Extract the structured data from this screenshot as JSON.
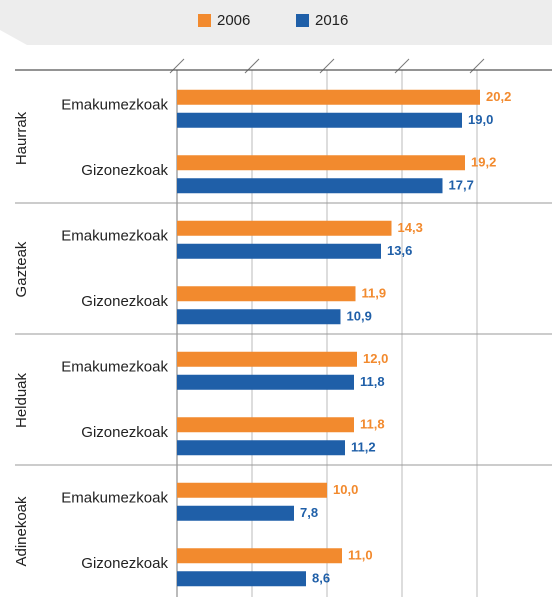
{
  "chart_data": {
    "type": "bar",
    "orientation": "horizontal",
    "groups": [
      "Haurrak",
      "Gazteak",
      "Helduak",
      "Adinekoak"
    ],
    "categories": [
      "Emakumezkoak",
      "Gizonezkoak",
      "Emakumezkoak",
      "Gizonezkoak",
      "Emakumezkoak",
      "Gizonezkoak",
      "Emakumezkoak",
      "Gizonezkoak"
    ],
    "series": [
      {
        "name": "2006",
        "color": "#f28a2e",
        "values": [
          20.2,
          19.2,
          14.3,
          11.9,
          12.0,
          11.8,
          10.0,
          11.0
        ],
        "value_labels": [
          "20,2",
          "19,2",
          "14,3",
          "11,9",
          "12,0",
          "11,8",
          "10,0",
          "11,0"
        ]
      },
      {
        "name": "2016",
        "color": "#1f5fa8",
        "values": [
          19.0,
          17.7,
          13.6,
          10.9,
          11.8,
          11.2,
          7.8,
          8.6
        ],
        "value_labels": [
          "19,0",
          "17,7",
          "13,6",
          "10,9",
          "11,8",
          "11,2",
          "7,8",
          "8,6"
        ]
      }
    ],
    "xlim": [
      0,
      25
    ],
    "xticks": [
      0,
      5,
      10,
      15,
      20
    ],
    "grid": true
  }
}
